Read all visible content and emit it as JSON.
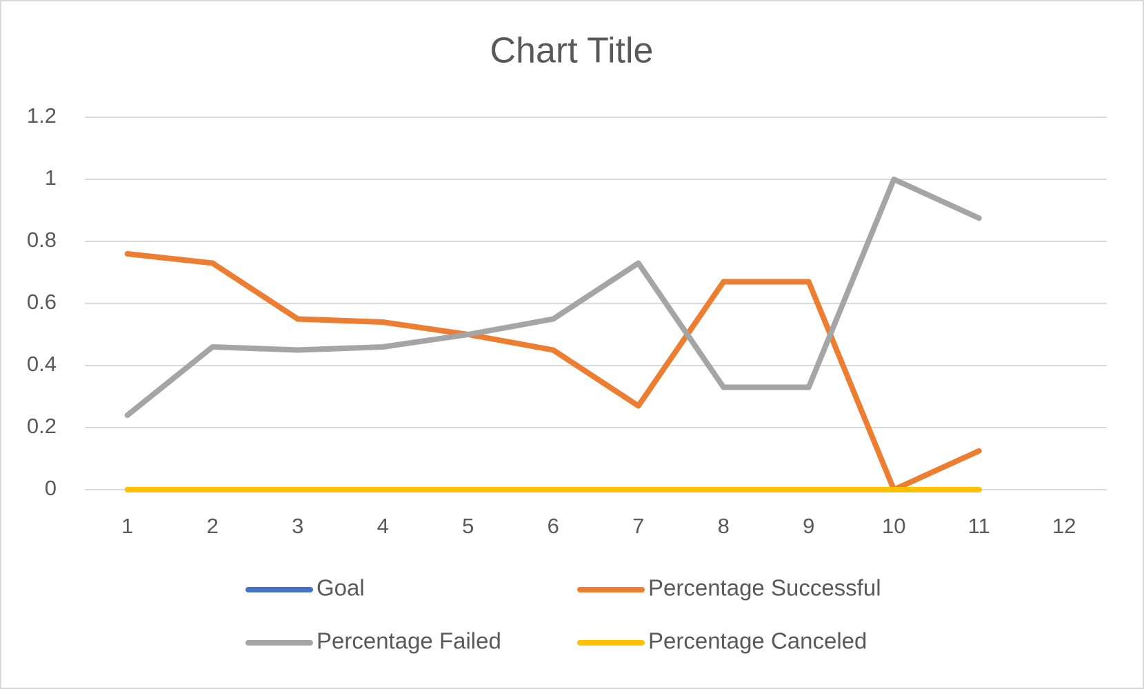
{
  "chart_data": {
    "type": "line",
    "title": "Chart Title",
    "categories": [
      "1",
      "2",
      "3",
      "4",
      "5",
      "6",
      "7",
      "8",
      "9",
      "10",
      "11",
      "12"
    ],
    "series": [
      {
        "name": "Goal",
        "color": "#4472c4",
        "values": [
          null,
          null,
          null,
          null,
          null,
          null,
          null,
          null,
          null,
          null,
          null,
          null
        ]
      },
      {
        "name": "Percentage Successful",
        "color": "#ed7d31",
        "values": [
          0.76,
          0.73,
          0.55,
          0.54,
          0.5,
          0.45,
          0.27,
          0.67,
          0.67,
          0,
          0.125,
          null
        ]
      },
      {
        "name": "Percentage Failed",
        "color": "#a5a5a5",
        "values": [
          0.24,
          0.46,
          0.45,
          0.46,
          0.5,
          0.55,
          0.73,
          0.33,
          0.33,
          1,
          0.875,
          null
        ]
      },
      {
        "name": "Percentage Canceled",
        "color": "#ffc000",
        "values": [
          0,
          0,
          0,
          0,
          0,
          0,
          0,
          0,
          0,
          0,
          0,
          null
        ]
      }
    ],
    "ylim": [
      0,
      1.2
    ],
    "yticks": [
      0,
      0.2,
      0.4,
      0.6,
      0.8,
      1,
      1.2
    ],
    "grid": true,
    "legend": "bottom"
  }
}
